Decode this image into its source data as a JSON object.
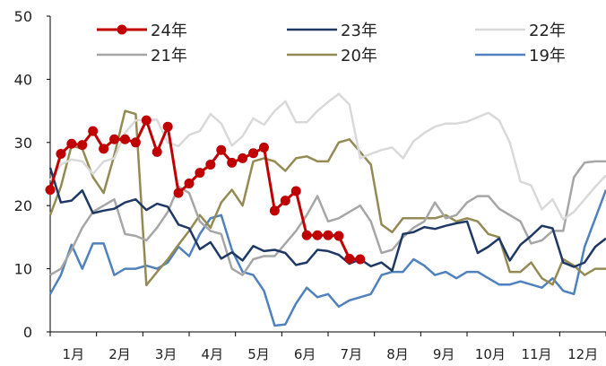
{
  "chart_data": {
    "type": "line",
    "title": "",
    "xlabel": "",
    "ylabel": "",
    "ylim": [
      0,
      50
    ],
    "yticks": [
      0,
      10,
      20,
      30,
      40,
      50
    ],
    "x_range": [
      0,
      52
    ],
    "month_labels": [
      "1月",
      "2月",
      "3月",
      "4月",
      "5月",
      "6月",
      "7月",
      "8月",
      "9月",
      "10月",
      "11月",
      "12月"
    ],
    "grid": false,
    "legend_position": "top",
    "series": [
      {
        "name": "24年",
        "color": "#c00000",
        "markers": true,
        "x": [
          0,
          1,
          2,
          3,
          4,
          5,
          6,
          7,
          8,
          9,
          10,
          11,
          12,
          13,
          14,
          15,
          16,
          17,
          18,
          19,
          20,
          21,
          22,
          23,
          24,
          25,
          26,
          27,
          28,
          29
        ],
        "values": [
          22.5,
          28.2,
          29.8,
          29.6,
          31.8,
          29.0,
          30.5,
          30.5,
          30.0,
          33.5,
          28.5,
          32.5,
          22.0,
          23.5,
          25.2,
          26.5,
          28.8,
          26.8,
          27.5,
          28.3,
          29.2,
          19.2,
          20.8,
          22.3,
          15.3,
          15.3,
          15.3,
          15.2,
          11.6,
          11.5
        ]
      },
      {
        "name": "23年",
        "color": "#1f3864",
        "markers": false,
        "x": [
          0,
          1,
          2,
          3,
          4,
          5,
          6,
          7,
          8,
          9,
          10,
          11,
          12,
          13,
          14,
          15,
          16,
          17,
          18,
          19,
          20,
          21,
          22,
          23,
          24,
          25,
          26,
          27,
          28,
          29,
          30,
          31,
          32,
          33,
          34,
          35,
          36,
          37,
          38,
          39,
          40,
          41,
          42,
          43,
          44,
          45,
          46,
          47,
          48,
          49,
          50,
          51,
          52
        ],
        "values": [
          26.0,
          20.5,
          20.8,
          22.4,
          18.8,
          19.2,
          19.5,
          20.5,
          21.0,
          19.3,
          20.3,
          19.8,
          17.0,
          16.4,
          13.1,
          14.2,
          11.6,
          12.6,
          11.3,
          13.6,
          12.8,
          13.0,
          12.5,
          10.6,
          11.0,
          13.0,
          12.8,
          12.2,
          10.8,
          11.5,
          10.4,
          11.0,
          9.7,
          15.5,
          15.8,
          16.6,
          16.3,
          16.8,
          17.2,
          17.5,
          12.5,
          13.5,
          14.8,
          11.3,
          13.8,
          15.2,
          16.8,
          16.4,
          11.0,
          10.3,
          11.0,
          13.5,
          14.8
        ]
      },
      {
        "name": "22年",
        "color": "#d9d9d9",
        "markers": false,
        "x": [
          0,
          1,
          2,
          3,
          4,
          5,
          6,
          7,
          8,
          9,
          10,
          11,
          12,
          13,
          14,
          15,
          16,
          17,
          18,
          19,
          20,
          21,
          22,
          23,
          24,
          25,
          26,
          27,
          28,
          29,
          30,
          31,
          32,
          33,
          34,
          35,
          36,
          37,
          38,
          39,
          40,
          41,
          42,
          43,
          44,
          45,
          46,
          47,
          48,
          49,
          50,
          51,
          52
        ],
        "values": [
          24.0,
          26.5,
          27.3,
          27.0,
          25.0,
          27.0,
          27.5,
          31.5,
          33.5,
          33.6,
          33.6,
          30.0,
          29.4,
          31.2,
          31.8,
          34.5,
          33.0,
          29.5,
          31.0,
          33.8,
          32.8,
          35.0,
          36.5,
          33.2,
          33.2,
          35.0,
          36.4,
          37.7,
          36.0,
          27.5,
          28.2,
          28.8,
          29.2,
          27.5,
          30.2,
          31.5,
          32.5,
          33.0,
          33.0,
          33.3,
          34.0,
          34.7,
          33.5,
          30.0,
          23.8,
          23.2,
          19.4,
          21.0,
          17.8,
          19.0,
          21.0,
          23.0,
          24.8
        ]
      },
      {
        "name": "21年",
        "color": "#a6a6a6",
        "markers": false,
        "x": [
          0,
          1,
          2,
          3,
          4,
          5,
          6,
          7,
          8,
          9,
          10,
          11,
          12,
          13,
          14,
          15,
          16,
          17,
          18,
          19,
          20,
          21,
          22,
          23,
          24,
          25,
          26,
          27,
          28,
          29,
          30,
          31,
          32,
          33,
          34,
          35,
          36,
          37,
          38,
          39,
          40,
          41,
          42,
          43,
          44,
          45,
          46,
          47,
          48,
          49,
          50,
          51,
          52
        ],
        "values": [
          9.0,
          10.0,
          13.0,
          16.5,
          19.0,
          20.0,
          21.0,
          15.5,
          15.2,
          14.5,
          16.5,
          19.0,
          23.0,
          22.0,
          17.5,
          16.0,
          15.5,
          10.0,
          9.0,
          11.5,
          12.0,
          12.0,
          14.0,
          16.0,
          18.5,
          21.5,
          17.5,
          18.0,
          19.0,
          20.0,
          17.5,
          12.5,
          13.0,
          15.0,
          16.5,
          17.5,
          20.5,
          18.0,
          18.5,
          20.5,
          21.5,
          21.5,
          19.5,
          18.5,
          17.5,
          14.0,
          14.5,
          16.0,
          16.0,
          24.5,
          26.8,
          27.0,
          27.0
        ]
      },
      {
        "name": "20年",
        "color": "#948a54",
        "markers": false,
        "x": [
          0,
          1,
          2,
          3,
          4,
          5,
          6,
          7,
          8,
          9,
          10,
          11,
          12,
          13,
          14,
          15,
          16,
          17,
          18,
          19,
          20,
          21,
          22,
          23,
          24,
          25,
          26,
          27,
          28,
          29,
          30,
          31,
          32,
          33,
          34,
          35,
          36,
          37,
          38,
          39,
          40,
          41,
          42,
          43,
          44,
          45,
          46,
          47,
          48,
          49,
          50,
          51,
          52
        ],
        "values": [
          18.5,
          23.0,
          29.5,
          29.0,
          24.5,
          22.0,
          28.0,
          35.0,
          34.5,
          7.4,
          9.5,
          11.5,
          13.8,
          16.0,
          18.5,
          16.5,
          20.5,
          22.5,
          20.0,
          27.0,
          27.5,
          27.0,
          25.5,
          27.5,
          27.8,
          27.0,
          27.0,
          30.0,
          30.5,
          28.5,
          26.5,
          17.0,
          15.8,
          18.0,
          18.0,
          18.0,
          18.0,
          18.5,
          17.5,
          18.0,
          17.5,
          15.5,
          15.0,
          9.5,
          9.5,
          11.0,
          8.5,
          7.5,
          11.5,
          10.5,
          9.0,
          10.0,
          10.0
        ]
      },
      {
        "name": "19年",
        "color": "#4f81bd",
        "markers": false,
        "x": [
          0,
          1,
          2,
          3,
          4,
          5,
          6,
          7,
          8,
          9,
          10,
          11,
          12,
          13,
          14,
          15,
          16,
          17,
          18,
          19,
          20,
          21,
          22,
          23,
          24,
          25,
          26,
          27,
          28,
          29,
          30,
          31,
          32,
          33,
          34,
          35,
          36,
          37,
          38,
          39,
          40,
          41,
          42,
          43,
          44,
          45,
          46,
          47,
          48,
          49,
          50,
          51,
          52
        ],
        "values": [
          6.0,
          9.0,
          13.8,
          10.0,
          14.0,
          14.0,
          9.0,
          10.0,
          10.0,
          10.5,
          10.0,
          11.0,
          13.5,
          12.0,
          15.5,
          18.0,
          18.5,
          13.0,
          9.5,
          9.0,
          6.5,
          1.0,
          1.2,
          4.5,
          7.0,
          5.5,
          6.0,
          4.0,
          5.0,
          5.5,
          6.0,
          9.0,
          9.5,
          9.5,
          11.5,
          10.5,
          9.0,
          9.5,
          8.5,
          9.5,
          9.5,
          8.5,
          7.5,
          7.5,
          8.0,
          7.5,
          7.0,
          8.5,
          6.5,
          6.0,
          13.5,
          18.0,
          22.5
        ]
      }
    ]
  }
}
